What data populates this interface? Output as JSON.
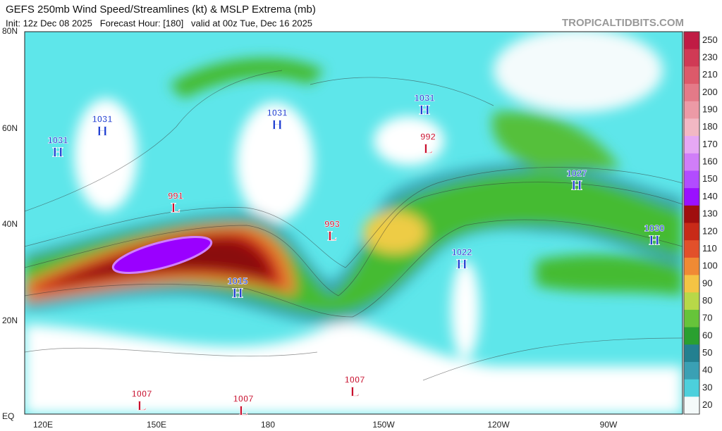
{
  "header": {
    "title": "GEFS 250mb Wind Speed/Streamlines (kt) & MSLP Extrema (mb)",
    "subtitle": "Init: 12z Dec 08 2025   Forecast Hour: [180]   valid at 00z Tue, Dec 16 2025",
    "watermark": "TROPICALTIDBITS.COM"
  },
  "map": {
    "lat_labels": [
      "80N",
      "60N",
      "40N",
      "20N",
      "EQ"
    ],
    "lon_labels": [
      "120E",
      "150E",
      "180",
      "150W",
      "120W",
      "90W"
    ],
    "centers": [
      {
        "value": 1031,
        "symbol": "H"
      },
      {
        "value": 1031,
        "symbol": "H"
      },
      {
        "value": 1031,
        "symbol": "H"
      },
      {
        "value": 1031,
        "symbol": "H"
      },
      {
        "value": 992,
        "symbol": "L"
      },
      {
        "value": 991,
        "symbol": "L"
      },
      {
        "value": 993,
        "symbol": "L"
      },
      {
        "value": 1027,
        "symbol": "H"
      },
      {
        "value": 1030,
        "symbol": "H"
      },
      {
        "value": 1022,
        "symbol": "H"
      },
      {
        "value": 1015,
        "symbol": "H"
      },
      {
        "value": 1007,
        "symbol": "L"
      },
      {
        "value": 1007,
        "symbol": "L"
      },
      {
        "value": 1007,
        "symbol": "L"
      }
    ]
  },
  "colorbar": {
    "labels": [
      250,
      230,
      210,
      200,
      190,
      180,
      170,
      160,
      150,
      140,
      130,
      120,
      110,
      100,
      90,
      80,
      70,
      60,
      50,
      40,
      30,
      20
    ]
  }
}
